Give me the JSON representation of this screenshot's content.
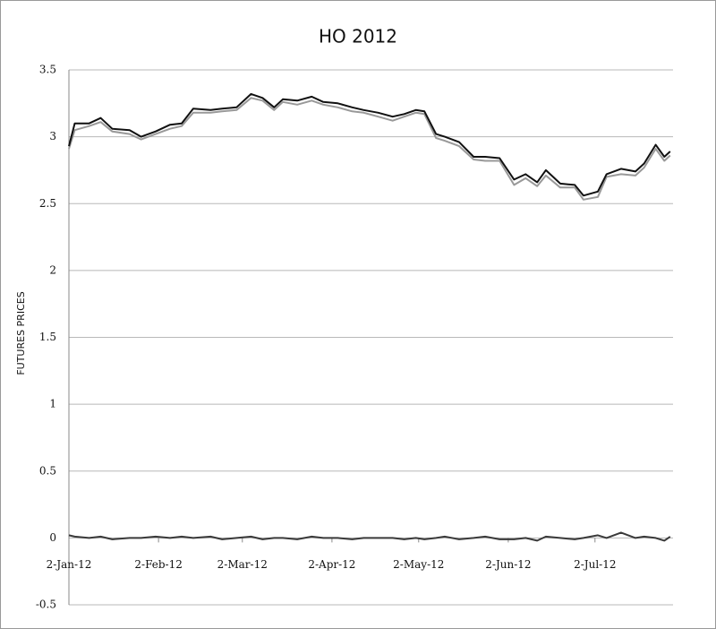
{
  "chart_data": {
    "type": "line",
    "title": "HO 2012",
    "y_label": "FUTURES PRICES",
    "x": [
      "2012-01-02",
      "2012-01-04",
      "2012-01-09",
      "2012-01-13",
      "2012-01-17",
      "2012-01-23",
      "2012-01-27",
      "2012-02-01",
      "2012-02-06",
      "2012-02-10",
      "2012-02-14",
      "2012-02-20",
      "2012-02-24",
      "2012-02-29",
      "2012-03-05",
      "2012-03-09",
      "2012-03-13",
      "2012-03-16",
      "2012-03-21",
      "2012-03-26",
      "2012-03-30",
      "2012-04-04",
      "2012-04-09",
      "2012-04-13",
      "2012-04-18",
      "2012-04-23",
      "2012-04-27",
      "2012-05-01",
      "2012-05-04",
      "2012-05-08",
      "2012-05-11",
      "2012-05-16",
      "2012-05-21",
      "2012-05-25",
      "2012-05-30",
      "2012-06-04",
      "2012-06-08",
      "2012-06-12",
      "2012-06-15",
      "2012-06-20",
      "2012-06-25",
      "2012-06-28",
      "2012-07-03",
      "2012-07-06",
      "2012-07-11",
      "2012-07-16",
      "2012-07-19",
      "2012-07-23",
      "2012-07-26",
      "2012-07-28"
    ],
    "series": [
      {
        "color": "#111111",
        "values": [
          2.93,
          3.1,
          3.1,
          3.14,
          3.06,
          3.05,
          3.0,
          3.04,
          3.09,
          3.1,
          3.21,
          3.2,
          3.21,
          3.22,
          3.32,
          3.29,
          3.22,
          3.28,
          3.27,
          3.3,
          3.26,
          3.25,
          3.22,
          3.2,
          3.18,
          3.15,
          3.17,
          3.2,
          3.19,
          3.02,
          3.0,
          2.96,
          2.85,
          2.85,
          2.84,
          2.68,
          2.72,
          2.66,
          2.75,
          2.65,
          2.64,
          2.56,
          2.59,
          2.72,
          2.76,
          2.74,
          2.8,
          2.94,
          2.85,
          2.89
        ]
      },
      {
        "color": "#999999",
        "values": [
          2.91,
          3.05,
          3.08,
          3.11,
          3.04,
          3.02,
          2.98,
          3.02,
          3.06,
          3.08,
          3.18,
          3.18,
          3.19,
          3.2,
          3.29,
          3.27,
          3.2,
          3.26,
          3.24,
          3.27,
          3.24,
          3.22,
          3.19,
          3.18,
          3.15,
          3.12,
          3.15,
          3.18,
          3.17,
          2.99,
          2.97,
          2.93,
          2.83,
          2.82,
          2.82,
          2.64,
          2.69,
          2.63,
          2.71,
          2.62,
          2.62,
          2.53,
          2.55,
          2.7,
          2.72,
          2.71,
          2.77,
          2.91,
          2.82,
          2.86
        ]
      },
      {
        "color": "#3a3a3a",
        "values": [
          0.02,
          0.01,
          0.0,
          0.01,
          -0.01,
          0.0,
          0.0,
          0.01,
          0.0,
          0.01,
          0.0,
          0.01,
          -0.01,
          0.0,
          0.01,
          -0.01,
          0.0,
          0.0,
          -0.01,
          0.01,
          0.0,
          0.0,
          -0.01,
          0.0,
          0.0,
          0.0,
          -0.01,
          0.0,
          -0.01,
          0.0,
          0.01,
          -0.01,
          0.0,
          0.01,
          -0.01,
          -0.01,
          0.0,
          -0.02,
          0.01,
          0.0,
          -0.01,
          0.0,
          0.02,
          0.0,
          0.04,
          0.0,
          0.01,
          0.0,
          -0.02,
          0.01
        ]
      }
    ],
    "xlim": [
      "2012-01-02",
      "2012-07-29"
    ],
    "xticks": [
      {
        "value": "2012-01-02",
        "label": "2-Jan-12"
      },
      {
        "value": "2012-02-02",
        "label": "2-Feb-12"
      },
      {
        "value": "2012-03-02",
        "label": "2-Mar-12"
      },
      {
        "value": "2012-04-02",
        "label": "2-Apr-12"
      },
      {
        "value": "2012-05-02",
        "label": "2-May-12"
      },
      {
        "value": "2012-06-02",
        "label": "2-Jun-12"
      },
      {
        "value": "2012-07-02",
        "label": "2-Jul-12"
      }
    ],
    "ylim": [
      -0.5,
      3.5
    ],
    "yticks": [
      -0.5,
      0,
      0.5,
      1,
      1.5,
      2,
      2.5,
      3,
      3.5
    ],
    "grid": true
  }
}
